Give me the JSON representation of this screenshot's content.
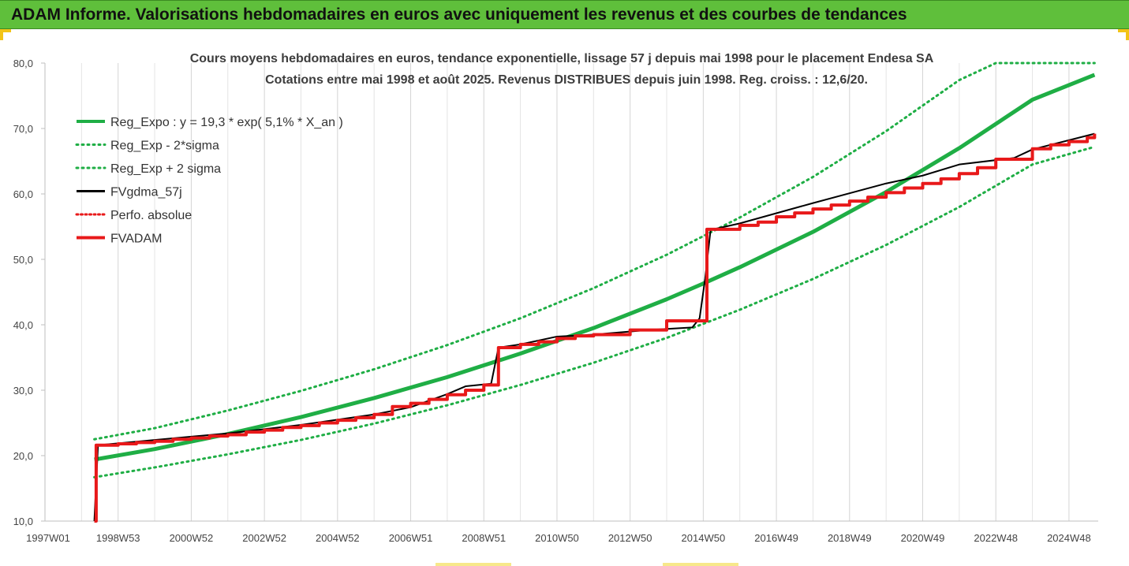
{
  "banner": {
    "title": "ADAM Informe. Valorisations hebdomadaires en euros avec uniquement les revenus et des courbes de tendances",
    "color": "#5fbf3b"
  },
  "chart_data": {
    "type": "line",
    "title": "Cours moyens hebdomadaires en euros, tendance exponentielle, lissage 57 j depuis mai 1998 pour le placement Endesa SA",
    "subtitle": "Cotations entre mai 1998 et août 2025. Revenus DISTRIBUES depuis juin 1998. Reg. croiss. : 12,6/20.",
    "xlabel": "",
    "ylabel": "",
    "x_unit": "year",
    "xlim": [
      1997.0,
      2025.8
    ],
    "ylim": [
      10,
      80
    ],
    "y_ticks": [
      "10,0",
      "20,0",
      "30,0",
      "40,0",
      "50,0",
      "60,0",
      "70,0",
      "80,0"
    ],
    "x_tick_labels": [
      {
        "label": "1997W01",
        "x": 1997.0
      },
      {
        "label": "1998W53",
        "x": 1999.0
      },
      {
        "label": "2000W52",
        "x": 2001.0
      },
      {
        "label": "2002W52",
        "x": 2003.0
      },
      {
        "label": "2004W52",
        "x": 2005.0
      },
      {
        "label": "2006W51",
        "x": 2007.0
      },
      {
        "label": "2008W51",
        "x": 2009.0
      },
      {
        "label": "2010W50",
        "x": 2011.0
      },
      {
        "label": "2012W50",
        "x": 2013.0
      },
      {
        "label": "2014W50",
        "x": 2015.0
      },
      {
        "label": "2016W49",
        "x": 2017.0
      },
      {
        "label": "2018W49",
        "x": 2019.0
      },
      {
        "label": "2020W49",
        "x": 2021.0
      },
      {
        "label": "2022W48",
        "x": 2023.0
      },
      {
        "label": "2024W48",
        "x": 2025.0
      }
    ],
    "grid": {
      "vertical": true,
      "horizontal": false
    },
    "legend_position": "top-left",
    "series": [
      {
        "name": "Reg_Expo : y = 19,3 * exp( 5,1% *  X_an )",
        "color": "#1fae45",
        "style": "solid",
        "width": 5,
        "x": [
          1998.35,
          2000.0,
          2002.0,
          2004.0,
          2006.0,
          2008.0,
          2010.0,
          2012.0,
          2014.0,
          2015.0,
          2016.0,
          2018.0,
          2020.0,
          2022.0,
          2024.0,
          2025.7
        ],
        "y": [
          19.4,
          21.0,
          23.3,
          25.9,
          28.8,
          32.0,
          35.6,
          39.5,
          43.9,
          46.3,
          48.8,
          54.2,
          60.3,
          67.0,
          74.4,
          78.2
        ]
      },
      {
        "name": "Reg_Exp - 2*sigma",
        "color": "#1fae45",
        "style": "dotted",
        "width": 3,
        "x": [
          1998.35,
          2000.0,
          2002.0,
          2004.0,
          2006.0,
          2008.0,
          2010.0,
          2012.0,
          2014.0,
          2016.0,
          2018.0,
          2020.0,
          2022.0,
          2024.0,
          2025.7
        ],
        "y": [
          16.7,
          18.2,
          20.2,
          22.4,
          24.9,
          27.7,
          30.8,
          34.2,
          38.0,
          42.3,
          47.0,
          52.2,
          58.0,
          64.5,
          67.2
        ]
      },
      {
        "name": "Reg_Exp + 2 sigma",
        "color": "#1fae45",
        "style": "dotted",
        "width": 3,
        "x": [
          1998.35,
          2000.0,
          2002.0,
          2004.0,
          2006.0,
          2008.0,
          2010.0,
          2012.0,
          2014.0,
          2016.0,
          2018.0,
          2020.0,
          2022.0,
          2023.0,
          2025.7
        ],
        "y": [
          22.5,
          24.2,
          26.9,
          29.9,
          33.2,
          36.9,
          41.0,
          45.6,
          50.7,
          56.4,
          62.6,
          69.6,
          77.4,
          80.0,
          80.0
        ]
      },
      {
        "name": "FVgdma_57j",
        "color": "#000000",
        "style": "solid",
        "width": 2,
        "x": [
          1998.35,
          1998.45,
          2000.0,
          2002.0,
          2004.0,
          2006.0,
          2007.0,
          2008.0,
          2008.5,
          2009.2,
          2009.4,
          2010.0,
          2011.0,
          2012.0,
          2013.5,
          2014.7,
          2014.9,
          2015.05,
          2015.2,
          2016.0,
          2018.0,
          2020.0,
          2021.0,
          2022.0,
          2023.5,
          2024.0,
          2025.7
        ],
        "y": [
          10.0,
          21.6,
          22.4,
          23.4,
          24.7,
          26.3,
          27.4,
          29.4,
          30.6,
          31.0,
          36.5,
          37.0,
          38.2,
          38.5,
          39.2,
          39.6,
          41.0,
          47.0,
          54.5,
          55.5,
          58.6,
          61.6,
          62.8,
          64.5,
          65.5,
          66.8,
          69.2
        ]
      },
      {
        "name": "Perfo. absolue",
        "color": "#e8191a",
        "style": "dotted",
        "width": 2,
        "x": [],
        "y": []
      },
      {
        "name": "FVADAM",
        "color": "#e8191a",
        "style": "step",
        "width": 4,
        "x": [
          1998.35,
          1998.4,
          1999.0,
          1999.5,
          2000.0,
          2000.5,
          2001.0,
          2001.5,
          2002.0,
          2002.5,
          2003.0,
          2003.5,
          2004.0,
          2004.5,
          2005.0,
          2005.5,
          2006.0,
          2006.5,
          2007.0,
          2007.5,
          2008.0,
          2008.5,
          2009.0,
          2009.4,
          2010.0,
          2010.5,
          2011.0,
          2011.5,
          2012.0,
          2013.0,
          2014.0,
          2014.9,
          2015.1,
          2016.0,
          2016.5,
          2017.0,
          2017.5,
          2018.0,
          2018.5,
          2019.0,
          2019.5,
          2020.0,
          2020.5,
          2021.0,
          2021.5,
          2022.0,
          2022.5,
          2023.0,
          2023.5,
          2024.0,
          2024.5,
          2025.0,
          2025.5,
          2025.7
        ],
        "y": [
          10.0,
          21.6,
          21.8,
          22.0,
          22.2,
          22.5,
          22.7,
          23.0,
          23.2,
          23.6,
          23.9,
          24.3,
          24.6,
          25.0,
          25.4,
          25.8,
          26.3,
          27.5,
          28.0,
          28.6,
          29.3,
          30.0,
          30.8,
          36.5,
          37.0,
          37.4,
          37.9,
          38.3,
          38.5,
          39.2,
          40.6,
          40.6,
          54.6,
          55.2,
          55.7,
          56.5,
          57.1,
          57.7,
          58.3,
          58.9,
          59.5,
          60.2,
          60.9,
          61.6,
          62.3,
          63.1,
          64.0,
          65.3,
          65.3,
          66.9,
          67.5,
          68.0,
          68.6,
          69.2
        ]
      }
    ]
  }
}
